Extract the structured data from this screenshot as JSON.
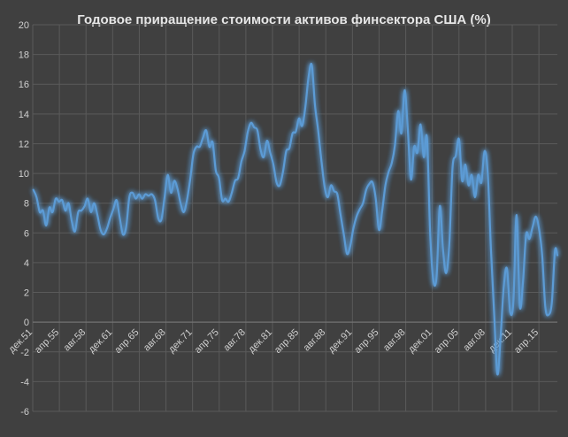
{
  "chart_data": {
    "type": "line",
    "title": "Годовое приращение стоимости активов финсектора США (%)",
    "xlabel": "",
    "ylabel": "",
    "ylim": [
      -6,
      20
    ],
    "y_ticks": [
      -6,
      -4,
      -2,
      0,
      2,
      4,
      6,
      8,
      10,
      12,
      14,
      16,
      18,
      20
    ],
    "x_tick_labels": [
      "дек.51",
      "апр.55",
      "авг.58",
      "дек.61",
      "апр.65",
      "авг.68",
      "дек.71",
      "апр.75",
      "авг.78",
      "дек.81",
      "апр.85",
      "авг.88",
      "дек.91",
      "апр.95",
      "авг.98",
      "дек.01",
      "апр.05",
      "авг.08",
      "дек.11",
      "апр.15"
    ],
    "x_start_year": 1951.92,
    "x_tick_step_years": 3.33,
    "x_end_year": 2017.5,
    "grid": true,
    "legend": "none",
    "line_color": "#5b9bd5",
    "series": [
      {
        "name": "",
        "values": [
          [
            1952.0,
            8.9
          ],
          [
            1952.4,
            8.4
          ],
          [
            1952.8,
            7.4
          ],
          [
            1953.2,
            7.5
          ],
          [
            1953.6,
            6.5
          ],
          [
            1954.0,
            7.7
          ],
          [
            1954.4,
            7.4
          ],
          [
            1954.8,
            8.3
          ],
          [
            1955.2,
            8.1
          ],
          [
            1955.6,
            8.2
          ],
          [
            1956.0,
            7.5
          ],
          [
            1956.4,
            8.0
          ],
          [
            1956.8,
            6.8
          ],
          [
            1957.2,
            6.1
          ],
          [
            1957.6,
            7.4
          ],
          [
            1958.0,
            7.5
          ],
          [
            1958.4,
            7.8
          ],
          [
            1958.8,
            8.3
          ],
          [
            1959.2,
            7.4
          ],
          [
            1959.6,
            8.0
          ],
          [
            1960.0,
            7.2
          ],
          [
            1960.4,
            6.2
          ],
          [
            1960.8,
            5.9
          ],
          [
            1961.2,
            6.3
          ],
          [
            1961.6,
            7.0
          ],
          [
            1962.0,
            7.6
          ],
          [
            1962.4,
            8.2
          ],
          [
            1962.8,
            7.0
          ],
          [
            1963.2,
            5.9
          ],
          [
            1963.6,
            6.4
          ],
          [
            1964.0,
            8.4
          ],
          [
            1964.4,
            8.7
          ],
          [
            1964.8,
            8.3
          ],
          [
            1965.2,
            8.6
          ],
          [
            1965.6,
            8.3
          ],
          [
            1966.0,
            8.6
          ],
          [
            1966.4,
            8.5
          ],
          [
            1966.8,
            8.6
          ],
          [
            1967.2,
            8.2
          ],
          [
            1967.6,
            7.0
          ],
          [
            1968.0,
            6.9
          ],
          [
            1968.4,
            8.4
          ],
          [
            1968.8,
            9.9
          ],
          [
            1969.2,
            8.7
          ],
          [
            1969.6,
            9.5
          ],
          [
            1970.0,
            9.0
          ],
          [
            1970.4,
            8.0
          ],
          [
            1970.8,
            7.4
          ],
          [
            1971.2,
            8.2
          ],
          [
            1971.6,
            9.6
          ],
          [
            1972.0,
            11.3
          ],
          [
            1972.4,
            11.8
          ],
          [
            1972.8,
            11.8
          ],
          [
            1973.2,
            12.4
          ],
          [
            1973.6,
            12.9
          ],
          [
            1974.0,
            11.8
          ],
          [
            1974.4,
            12.1
          ],
          [
            1974.8,
            10.2
          ],
          [
            1975.2,
            9.7
          ],
          [
            1975.6,
            8.2
          ],
          [
            1976.0,
            8.3
          ],
          [
            1976.4,
            8.1
          ],
          [
            1976.8,
            8.7
          ],
          [
            1977.2,
            9.5
          ],
          [
            1977.6,
            9.7
          ],
          [
            1978.0,
            10.8
          ],
          [
            1978.4,
            11.5
          ],
          [
            1978.8,
            12.8
          ],
          [
            1979.2,
            13.4
          ],
          [
            1979.6,
            13.1
          ],
          [
            1980.0,
            12.9
          ],
          [
            1980.4,
            11.6
          ],
          [
            1980.8,
            11.1
          ],
          [
            1981.2,
            12.2
          ],
          [
            1981.6,
            11.4
          ],
          [
            1982.0,
            10.6
          ],
          [
            1982.4,
            9.4
          ],
          [
            1982.8,
            9.2
          ],
          [
            1983.2,
            10.1
          ],
          [
            1983.6,
            11.5
          ],
          [
            1984.0,
            11.7
          ],
          [
            1984.4,
            12.7
          ],
          [
            1984.8,
            12.8
          ],
          [
            1985.2,
            13.7
          ],
          [
            1985.6,
            13.2
          ],
          [
            1986.0,
            14.5
          ],
          [
            1986.4,
            16.5
          ],
          [
            1986.8,
            17.3
          ],
          [
            1987.2,
            14.6
          ],
          [
            1987.6,
            12.9
          ],
          [
            1988.0,
            10.9
          ],
          [
            1988.4,
            9.1
          ],
          [
            1988.8,
            8.4
          ],
          [
            1989.2,
            9.2
          ],
          [
            1989.6,
            8.8
          ],
          [
            1990.0,
            8.6
          ],
          [
            1990.4,
            7.2
          ],
          [
            1990.8,
            5.9
          ],
          [
            1991.2,
            4.6
          ],
          [
            1991.6,
            5.1
          ],
          [
            1992.0,
            6.3
          ],
          [
            1992.4,
            7.1
          ],
          [
            1992.8,
            7.6
          ],
          [
            1993.2,
            8.0
          ],
          [
            1993.6,
            8.9
          ],
          [
            1994.0,
            9.3
          ],
          [
            1994.4,
            9.4
          ],
          [
            1994.8,
            8.3
          ],
          [
            1995.2,
            6.2
          ],
          [
            1995.6,
            7.5
          ],
          [
            1996.0,
            9.2
          ],
          [
            1996.4,
            10.1
          ],
          [
            1996.8,
            10.7
          ],
          [
            1997.2,
            11.9
          ],
          [
            1997.6,
            14.2
          ],
          [
            1998.0,
            12.7
          ],
          [
            1998.4,
            15.6
          ],
          [
            1998.8,
            13.0
          ],
          [
            1999.2,
            9.6
          ],
          [
            1999.6,
            11.8
          ],
          [
            2000.0,
            11.4
          ],
          [
            2000.4,
            13.3
          ],
          [
            2000.8,
            11.1
          ],
          [
            2001.2,
            12.4
          ],
          [
            2001.6,
            6.0
          ],
          [
            2002.0,
            2.8
          ],
          [
            2002.4,
            3.1
          ],
          [
            2002.8,
            7.8
          ],
          [
            2003.2,
            4.9
          ],
          [
            2003.6,
            3.3
          ],
          [
            2004.0,
            5.3
          ],
          [
            2004.4,
            10.4
          ],
          [
            2004.8,
            11.2
          ],
          [
            2005.2,
            12.3
          ],
          [
            2005.6,
            9.5
          ],
          [
            2006.0,
            10.6
          ],
          [
            2006.4,
            9.2
          ],
          [
            2006.8,
            9.9
          ],
          [
            2007.2,
            8.4
          ],
          [
            2007.6,
            9.9
          ],
          [
            2008.0,
            9.4
          ],
          [
            2008.4,
            11.5
          ],
          [
            2008.8,
            10.0
          ],
          [
            2009.2,
            4.9
          ],
          [
            2009.6,
            0.5
          ],
          [
            2010.0,
            -3.5
          ],
          [
            2010.4,
            -1.0
          ],
          [
            2010.8,
            2.4
          ],
          [
            2011.2,
            3.6
          ],
          [
            2011.6,
            0.7
          ],
          [
            2012.0,
            1.4
          ],
          [
            2012.4,
            7.2
          ],
          [
            2012.8,
            1.1
          ],
          [
            2013.2,
            2.7
          ],
          [
            2013.6,
            5.9
          ],
          [
            2014.0,
            5.6
          ],
          [
            2014.4,
            6.4
          ],
          [
            2014.8,
            7.1
          ],
          [
            2015.2,
            6.3
          ],
          [
            2015.6,
            4.5
          ],
          [
            2016.0,
            1.0
          ],
          [
            2016.4,
            0.5
          ],
          [
            2016.8,
            1.3
          ],
          [
            2017.2,
            4.8
          ],
          [
            2017.5,
            4.5
          ]
        ]
      }
    ]
  }
}
